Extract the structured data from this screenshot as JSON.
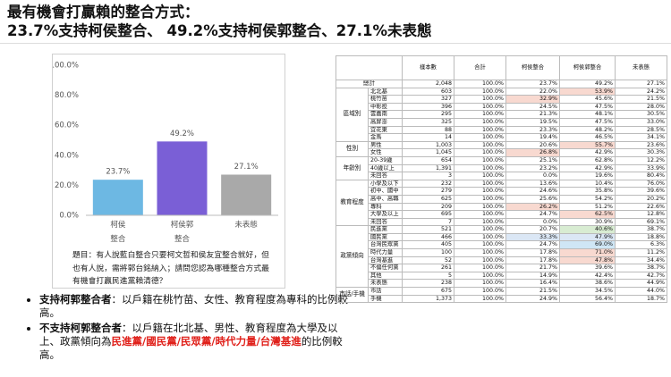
{
  "header": {
    "title_line1": "最有機會打贏賴的整合方式：",
    "title_line2": "23.7%支持柯侯整合、 49.2%支持柯侯郭整合、27.1%未表態"
  },
  "chart_data": {
    "type": "bar",
    "categories": [
      "柯侯\n整合",
      "柯侯郭\n整合",
      "未表態"
    ],
    "values": [
      23.7,
      49.2,
      27.1
    ],
    "value_labels": [
      "23.7%",
      "49.2%",
      "27.1%"
    ],
    "colors": [
      "#6db8e3",
      "#7a5fd6",
      "#a9a9a9"
    ],
    "ylim": [
      0,
      100
    ],
    "yticks": [
      {
        "value": 0,
        "label": "0.0%"
      },
      {
        "value": 20,
        "label": "20.0%"
      },
      {
        "value": 40,
        "label": "40.0%"
      },
      {
        "value": 60,
        "label": "60.0%"
      },
      {
        "value": 80,
        "label": "80.0%"
      },
      {
        "value": 100,
        "label": "100.0%"
      }
    ],
    "grid": false,
    "note": "題目：有人說藍白整合只要柯文哲和侯友宜整合就好，但也有人說，需將郭台銘納入；請問您認為哪種整合方式最有機會打贏民進黨賴清德？"
  },
  "bullets": [
    {
      "bold": "支持柯郭整合者",
      "text": "：以戶籍在桃竹苗、女性、教育程度為專科的比例較高。"
    },
    {
      "bold": "不支持柯郭整合者",
      "text": "：以戶籍在北北基、男性、教育程度為大學及以上、政黨傾向為",
      "red": "民進黨/國民黨/民眾黨/時代力量/台灣基進",
      "tail": "的比例較高。"
    }
  ],
  "table": {
    "columns": [
      "樣本數",
      "合計",
      "柯侯整合",
      "柯侯郭整合",
      "未表態"
    ],
    "total": [
      "總計",
      "2,048",
      "100.0%",
      "23.7%",
      "49.2%",
      "27.1%"
    ],
    "groups": [
      {
        "label": "區域別",
        "rows": [
          [
            "北北基",
            "603",
            "100.0%",
            "22.0%",
            "53.9%",
            "24.2%"
          ],
          [
            "桃竹苗",
            "327",
            "100.0%",
            "32.9%",
            "45.6%",
            "21.5%"
          ],
          [
            "中彰投",
            "396",
            "100.0%",
            "24.5%",
            "47.5%",
            "28.0%"
          ],
          [
            "雲嘉南",
            "295",
            "100.0%",
            "21.3%",
            "48.1%",
            "30.5%"
          ],
          [
            "高屏澎",
            "325",
            "100.0%",
            "19.5%",
            "47.5%",
            "33.0%"
          ],
          [
            "宜花東",
            "88",
            "100.0%",
            "23.3%",
            "48.2%",
            "28.5%"
          ],
          [
            "金馬",
            "14",
            "100.0%",
            "19.4%",
            "46.5%",
            "34.1%"
          ]
        ]
      },
      {
        "label": "性別",
        "rows": [
          [
            "男性",
            "1,003",
            "100.0%",
            "20.6%",
            "55.7%",
            "23.6%"
          ],
          [
            "女性",
            "1,045",
            "100.0%",
            "26.8%",
            "42.9%",
            "30.3%"
          ]
        ]
      },
      {
        "label": "年齡別",
        "rows": [
          [
            "20-39歲",
            "654",
            "100.0%",
            "25.1%",
            "62.8%",
            "12.2%"
          ],
          [
            "40歲以上",
            "1,391",
            "100.0%",
            "23.2%",
            "42.9%",
            "33.9%"
          ],
          [
            "未回答",
            "3",
            "100.0%",
            "0.0%",
            "19.6%",
            "80.4%"
          ]
        ]
      },
      {
        "label": "教育程度",
        "rows": [
          [
            "小學及以下",
            "232",
            "100.0%",
            "13.6%",
            "10.4%",
            "76.0%"
          ],
          [
            "初中、國中",
            "279",
            "100.0%",
            "24.6%",
            "35.8%",
            "39.6%"
          ],
          [
            "高中、高職",
            "625",
            "100.0%",
            "25.6%",
            "54.2%",
            "20.2%"
          ],
          [
            "專科",
            "209",
            "100.0%",
            "26.2%",
            "51.2%",
            "22.6%"
          ],
          [
            "大學及以上",
            "695",
            "100.0%",
            "24.7%",
            "62.5%",
            "12.8%"
          ],
          [
            "未回答",
            "7",
            "100.0%",
            "0.0%",
            "30.9%",
            "69.1%"
          ]
        ]
      },
      {
        "label": "政黨傾向",
        "rows": [
          [
            "民進黨",
            "521",
            "100.0%",
            "20.7%",
            "40.6%",
            "38.7%"
          ],
          [
            "國民黨",
            "466",
            "100.0%",
            "33.3%",
            "47.9%",
            "18.8%"
          ],
          [
            "台灣民眾黨",
            "405",
            "100.0%",
            "24.7%",
            "69.0%",
            "6.3%"
          ],
          [
            "時代力量",
            "100",
            "100.0%",
            "17.8%",
            "71.0%",
            "11.2%"
          ],
          [
            "台灣基進",
            "52",
            "100.0%",
            "17.8%",
            "47.8%",
            "34.4%"
          ],
          [
            "不偏任何黨",
            "261",
            "100.0%",
            "21.7%",
            "39.6%",
            "38.7%"
          ],
          [
            "其他",
            "5",
            "100.0%",
            "14.9%",
            "42.4%",
            "42.7%"
          ],
          [
            "未表態",
            "238",
            "100.0%",
            "16.4%",
            "38.6%",
            "44.9%"
          ]
        ]
      },
      {
        "label": "市話/手機",
        "rows": [
          [
            "市話",
            "675",
            "100.0%",
            "21.5%",
            "34.5%",
            "44.0%"
          ],
          [
            "手機",
            "1,373",
            "100.0%",
            "24.9%",
            "56.4%",
            "18.7%"
          ]
        ]
      }
    ],
    "highlights": [
      {
        "cell": "table.groups.0.rows.0.4",
        "color": "#f8d9d0"
      },
      {
        "cell": "table.groups.0.rows.1.3",
        "color": "#f8d9d0"
      },
      {
        "cell": "table.groups.1.rows.0.4",
        "color": "#f8d9d0"
      },
      {
        "cell": "table.groups.1.rows.1.3",
        "color": "#f8d9d0"
      },
      {
        "cell": "table.groups.3.rows.3.3",
        "color": "#f8d9d0"
      },
      {
        "cell": "table.groups.3.rows.4.4",
        "color": "#f8d9d0"
      },
      {
        "cell": "table.groups.4.rows.0.4",
        "color": "#d8ecd2"
      },
      {
        "cell": "table.groups.4.rows.1.3",
        "color": "#dbe7f5"
      },
      {
        "cell": "table.groups.4.rows.1.4",
        "color": "#dbe7f5"
      },
      {
        "cell": "table.groups.4.rows.2.4",
        "color": "#cfe6f5"
      },
      {
        "cell": "table.groups.4.rows.3.4",
        "color": "#f8d9d0"
      },
      {
        "cell": "table.groups.4.rows.4.4",
        "color": "#f8d9d0"
      }
    ]
  }
}
